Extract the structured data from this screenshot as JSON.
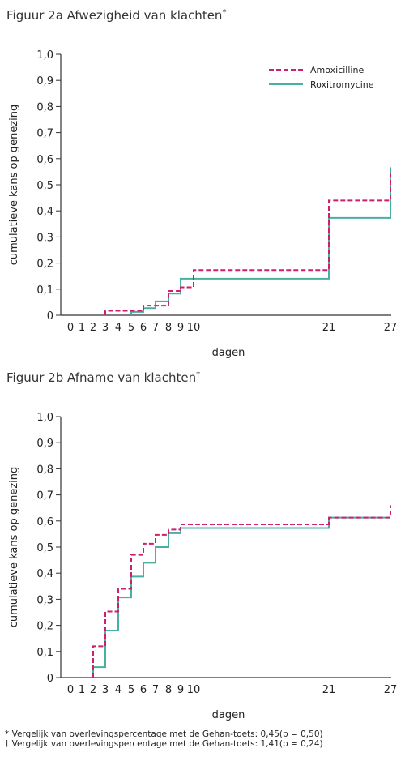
{
  "chart_data": [
    {
      "type": "line",
      "step": true,
      "title": "Figuur 2a Afwezigheid van klachten",
      "title_mark": "*",
      "xlabel": "dagen",
      "ylabel": "cumulatieve kans op genezing",
      "xticks": [
        0,
        1,
        2,
        3,
        4,
        5,
        6,
        7,
        8,
        9,
        10,
        21,
        27
      ],
      "yticks": [
        "0",
        "0,1",
        "0,2",
        "0,3",
        "0,4",
        "0,5",
        "0,6",
        "0,7",
        "0,8",
        "0,9",
        "1,0"
      ],
      "ylim": [
        0,
        1
      ],
      "legend_position": "top-right",
      "series": [
        {
          "name": "Amoxicilline",
          "color": "#cc1f6e",
          "dash": "dashed",
          "x": [
            3,
            6,
            8,
            9,
            10,
            21,
            27
          ],
          "y": [
            0.017,
            0.037,
            0.093,
            0.107,
            0.173,
            0.44,
            0.557
          ]
        },
        {
          "name": "Roxitromycine",
          "color": "#4aafa3",
          "dash": "solid",
          "x": [
            5,
            6,
            7,
            8,
            9,
            21,
            27
          ],
          "y": [
            0.013,
            0.027,
            0.053,
            0.083,
            0.14,
            0.373,
            0.567
          ]
        }
      ]
    },
    {
      "type": "line",
      "step": true,
      "title": "Figuur 2b Afname van klachten",
      "title_mark": "†",
      "xlabel": "dagen",
      "ylabel": "cumulatieve kans op genezing",
      "xticks": [
        0,
        1,
        2,
        3,
        4,
        5,
        6,
        7,
        8,
        9,
        10,
        21,
        27
      ],
      "yticks": [
        "0",
        "0,1",
        "0,2",
        "0,3",
        "0,4",
        "0,5",
        "0,6",
        "0,7",
        "0,8",
        "0,9",
        "1,0"
      ],
      "ylim": [
        0,
        1
      ],
      "series": [
        {
          "name": "Amoxicilline",
          "color": "#cc1f6e",
          "dash": "dashed",
          "x": [
            2,
            3,
            4,
            5,
            6,
            7,
            8,
            9,
            21,
            27
          ],
          "y": [
            0.12,
            0.253,
            0.34,
            0.47,
            0.513,
            0.547,
            0.567,
            0.587,
            0.613,
            0.66
          ]
        },
        {
          "name": "Roxitromycine",
          "color": "#4aafa3",
          "dash": "solid",
          "x": [
            2,
            3,
            4,
            5,
            6,
            7,
            8,
            9,
            21
          ],
          "y": [
            0.04,
            0.18,
            0.307,
            0.387,
            0.44,
            0.5,
            0.553,
            0.573,
            0.613
          ]
        }
      ]
    }
  ],
  "footnotes": [
    "* Vergelijk van overlevingspercentage met de Gehan-toets: 0,45(p = 0,50)",
    "† Vergelijk van overlevingspercentage met de Gehan-toets: 1,41(p = 0,24)"
  ]
}
